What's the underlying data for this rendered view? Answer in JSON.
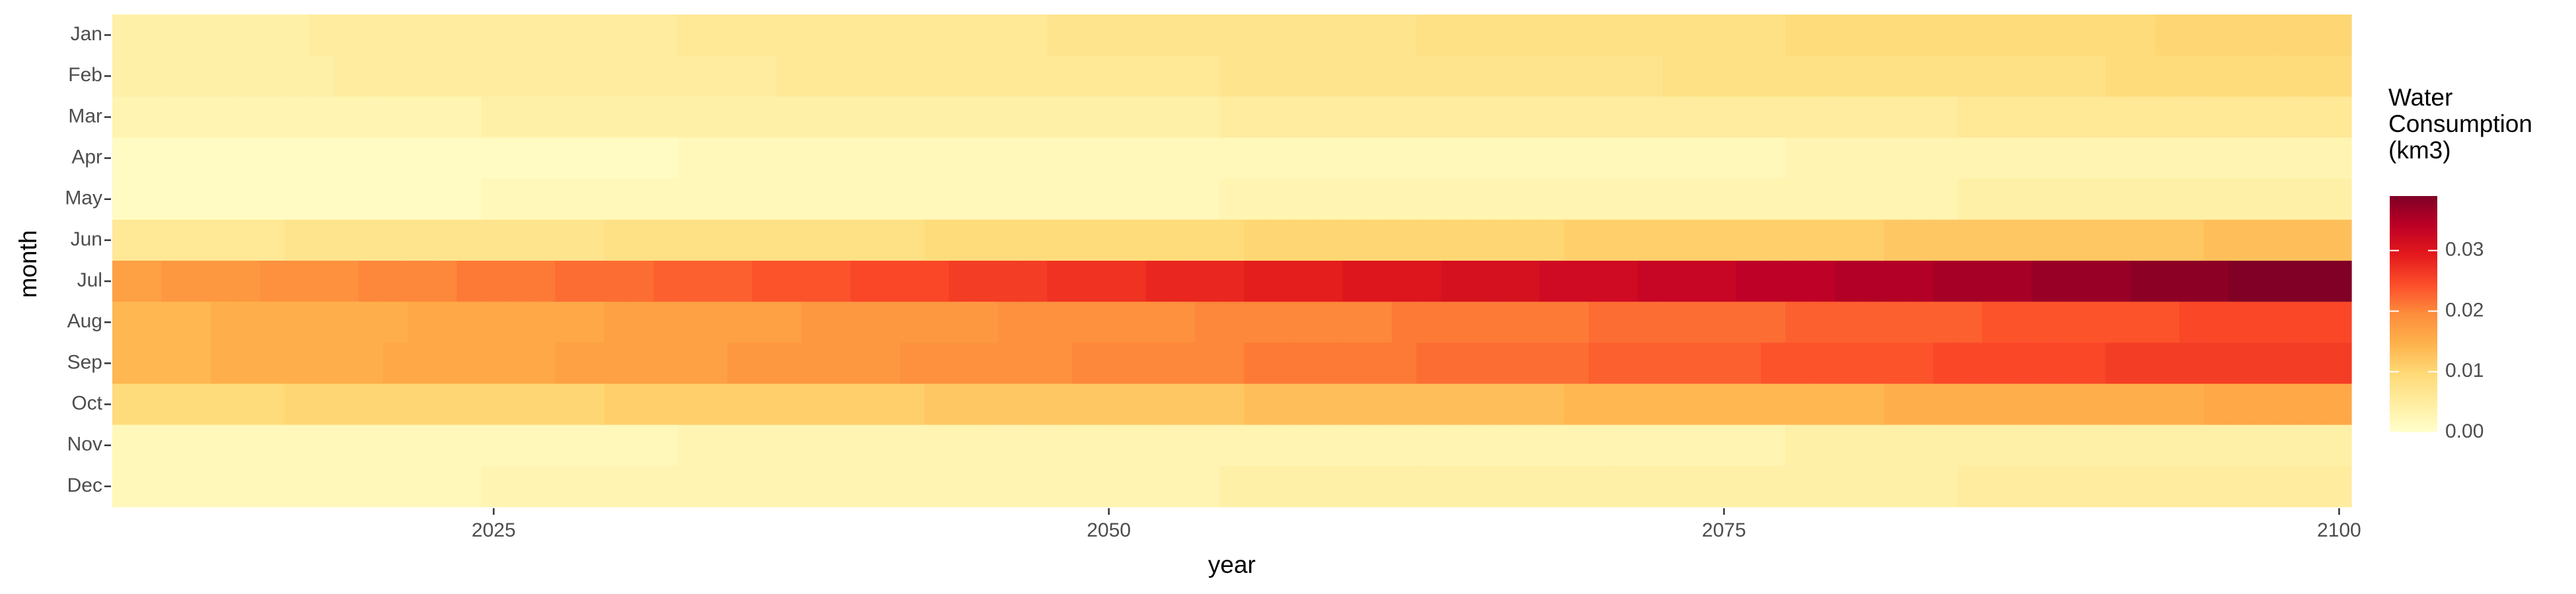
{
  "chart_data": {
    "type": "heatmap",
    "x_label": "year",
    "y_label": "month",
    "legend_title": "Water Consumption (km3)",
    "categories": [
      "Jan",
      "Feb",
      "Mar",
      "Apr",
      "May",
      "Jun",
      "Jul",
      "Aug",
      "Sep",
      "Oct",
      "Nov",
      "Dec"
    ],
    "x": [
      2010,
      2011,
      2012,
      2013,
      2014,
      2015,
      2016,
      2017,
      2018,
      2019,
      2020,
      2021,
      2022,
      2023,
      2024,
      2025,
      2026,
      2027,
      2028,
      2029,
      2030,
      2031,
      2032,
      2033,
      2034,
      2035,
      2036,
      2037,
      2038,
      2039,
      2040,
      2041,
      2042,
      2043,
      2044,
      2045,
      2046,
      2047,
      2048,
      2049,
      2050,
      2051,
      2052,
      2053,
      2054,
      2055,
      2056,
      2057,
      2058,
      2059,
      2060,
      2061,
      2062,
      2063,
      2064,
      2065,
      2066,
      2067,
      2068,
      2069,
      2070,
      2071,
      2072,
      2073,
      2074,
      2075,
      2076,
      2077,
      2078,
      2079,
      2080,
      2081,
      2082,
      2083,
      2084,
      2085,
      2086,
      2087,
      2088,
      2089,
      2090,
      2091,
      2092,
      2093,
      2094,
      2095,
      2096,
      2097,
      2098,
      2099,
      2100
    ],
    "xlim": [
      2009.5,
      2100.5
    ],
    "xticks": [
      2025,
      2050,
      2075,
      2100
    ],
    "clim": [
      0,
      0.039
    ],
    "cticks": [
      {
        "value": 0,
        "label": "0.00"
      },
      {
        "value": 0.01,
        "label": "0.01"
      },
      {
        "value": 0.02,
        "label": "0.02"
      },
      {
        "value": 0.03,
        "label": "0.03"
      }
    ],
    "colors": [
      "#ffffcc",
      "#ffeda0",
      "#fed976",
      "#feb24c",
      "#fd8d3c",
      "#fc4e2a",
      "#e31a1c",
      "#bd0026",
      "#800026"
    ],
    "values": [
      [
        0.004,
        0.004,
        0.004,
        0.004,
        0.004,
        0.004,
        0.004,
        0.004,
        0.005,
        0.005,
        0.005,
        0.005,
        0.005,
        0.005,
        0.005,
        0.005,
        0.005,
        0.005,
        0.005,
        0.005,
        0.005,
        0.005,
        0.005,
        0.006,
        0.006,
        0.006,
        0.006,
        0.006,
        0.006,
        0.006,
        0.006,
        0.006,
        0.006,
        0.006,
        0.006,
        0.006,
        0.006,
        0.006,
        0.007,
        0.007,
        0.007,
        0.007,
        0.007,
        0.007,
        0.007,
        0.007,
        0.007,
        0.007,
        0.007,
        0.007,
        0.007,
        0.007,
        0.007,
        0.008,
        0.008,
        0.008,
        0.008,
        0.008,
        0.008,
        0.008,
        0.008,
        0.008,
        0.008,
        0.008,
        0.008,
        0.008,
        0.008,
        0.008,
        0.009,
        0.009,
        0.009,
        0.009,
        0.009,
        0.009,
        0.009,
        0.009,
        0.009,
        0.009,
        0.009,
        0.009,
        0.009,
        0.009,
        0.009,
        0.01,
        0.01,
        0.01,
        0.01,
        0.01,
        0.01,
        0.01,
        0.01
      ],
      [
        0.004,
        0.004,
        0.004,
        0.004,
        0.004,
        0.004,
        0.004,
        0.004,
        0.004,
        0.005,
        0.005,
        0.005,
        0.005,
        0.005,
        0.005,
        0.005,
        0.005,
        0.005,
        0.005,
        0.005,
        0.005,
        0.005,
        0.005,
        0.005,
        0.005,
        0.005,
        0.005,
        0.006,
        0.006,
        0.006,
        0.006,
        0.006,
        0.006,
        0.006,
        0.006,
        0.006,
        0.006,
        0.006,
        0.006,
        0.006,
        0.006,
        0.006,
        0.006,
        0.006,
        0.006,
        0.007,
        0.007,
        0.007,
        0.007,
        0.007,
        0.007,
        0.007,
        0.007,
        0.007,
        0.007,
        0.007,
        0.007,
        0.007,
        0.007,
        0.007,
        0.007,
        0.007,
        0.007,
        0.008,
        0.008,
        0.008,
        0.008,
        0.008,
        0.008,
        0.008,
        0.008,
        0.008,
        0.008,
        0.008,
        0.008,
        0.008,
        0.008,
        0.008,
        0.008,
        0.008,
        0.008,
        0.009,
        0.009,
        0.009,
        0.009,
        0.009,
        0.009,
        0.009,
        0.009,
        0.009,
        0.009
      ],
      [
        0.003,
        0.003,
        0.003,
        0.003,
        0.003,
        0.003,
        0.003,
        0.003,
        0.003,
        0.003,
        0.003,
        0.003,
        0.003,
        0.003,
        0.003,
        0.004,
        0.004,
        0.004,
        0.004,
        0.004,
        0.004,
        0.004,
        0.004,
        0.004,
        0.004,
        0.004,
        0.004,
        0.004,
        0.004,
        0.004,
        0.004,
        0.004,
        0.004,
        0.004,
        0.004,
        0.004,
        0.004,
        0.004,
        0.004,
        0.004,
        0.004,
        0.004,
        0.004,
        0.004,
        0.004,
        0.005,
        0.005,
        0.005,
        0.005,
        0.005,
        0.005,
        0.005,
        0.005,
        0.005,
        0.005,
        0.005,
        0.005,
        0.005,
        0.005,
        0.005,
        0.005,
        0.005,
        0.005,
        0.005,
        0.005,
        0.005,
        0.005,
        0.005,
        0.005,
        0.005,
        0.005,
        0.005,
        0.005,
        0.005,
        0.005,
        0.006,
        0.006,
        0.006,
        0.006,
        0.006,
        0.006,
        0.006,
        0.006,
        0.006,
        0.006,
        0.006,
        0.006,
        0.006,
        0.006,
        0.006,
        0.006
      ],
      [
        0.001,
        0.001,
        0.001,
        0.001,
        0.001,
        0.001,
        0.001,
        0.001,
        0.001,
        0.001,
        0.001,
        0.001,
        0.001,
        0.001,
        0.001,
        0.001,
        0.001,
        0.001,
        0.001,
        0.001,
        0.001,
        0.001,
        0.001,
        0.002,
        0.002,
        0.002,
        0.002,
        0.002,
        0.002,
        0.002,
        0.002,
        0.002,
        0.002,
        0.002,
        0.002,
        0.002,
        0.002,
        0.002,
        0.002,
        0.002,
        0.002,
        0.002,
        0.002,
        0.002,
        0.002,
        0.002,
        0.002,
        0.002,
        0.002,
        0.002,
        0.002,
        0.002,
        0.002,
        0.002,
        0.002,
        0.002,
        0.002,
        0.002,
        0.002,
        0.002,
        0.002,
        0.002,
        0.002,
        0.002,
        0.002,
        0.002,
        0.002,
        0.002,
        0.003,
        0.003,
        0.003,
        0.003,
        0.003,
        0.003,
        0.003,
        0.003,
        0.003,
        0.003,
        0.003,
        0.003,
        0.003,
        0.003,
        0.003,
        0.003,
        0.003,
        0.003,
        0.003,
        0.003,
        0.003,
        0.003,
        0.003
      ],
      [
        0.001,
        0.001,
        0.001,
        0.001,
        0.001,
        0.001,
        0.001,
        0.001,
        0.001,
        0.001,
        0.001,
        0.001,
        0.001,
        0.001,
        0.001,
        0.002,
        0.002,
        0.002,
        0.002,
        0.002,
        0.002,
        0.002,
        0.002,
        0.002,
        0.002,
        0.002,
        0.002,
        0.002,
        0.002,
        0.002,
        0.002,
        0.002,
        0.002,
        0.002,
        0.002,
        0.002,
        0.002,
        0.002,
        0.002,
        0.002,
        0.002,
        0.002,
        0.002,
        0.002,
        0.002,
        0.003,
        0.003,
        0.003,
        0.003,
        0.003,
        0.003,
        0.003,
        0.003,
        0.003,
        0.003,
        0.003,
        0.003,
        0.003,
        0.003,
        0.003,
        0.003,
        0.003,
        0.003,
        0.003,
        0.003,
        0.003,
        0.003,
        0.003,
        0.003,
        0.003,
        0.003,
        0.003,
        0.003,
        0.003,
        0.003,
        0.004,
        0.004,
        0.004,
        0.004,
        0.004,
        0.004,
        0.004,
        0.004,
        0.004,
        0.004,
        0.004,
        0.004,
        0.004,
        0.004,
        0.004,
        0.004
      ],
      [
        0.006,
        0.006,
        0.006,
        0.006,
        0.006,
        0.006,
        0.006,
        0.007,
        0.007,
        0.007,
        0.007,
        0.007,
        0.007,
        0.007,
        0.007,
        0.007,
        0.007,
        0.007,
        0.007,
        0.007,
        0.008,
        0.008,
        0.008,
        0.008,
        0.008,
        0.008,
        0.008,
        0.008,
        0.008,
        0.008,
        0.008,
        0.008,
        0.008,
        0.009,
        0.009,
        0.009,
        0.009,
        0.009,
        0.009,
        0.009,
        0.009,
        0.009,
        0.009,
        0.009,
        0.009,
        0.009,
        0.01,
        0.01,
        0.01,
        0.01,
        0.01,
        0.01,
        0.01,
        0.01,
        0.01,
        0.01,
        0.01,
        0.01,
        0.01,
        0.011,
        0.011,
        0.011,
        0.011,
        0.011,
        0.011,
        0.011,
        0.011,
        0.011,
        0.011,
        0.011,
        0.011,
        0.011,
        0.012,
        0.012,
        0.012,
        0.012,
        0.012,
        0.012,
        0.012,
        0.012,
        0.012,
        0.012,
        0.012,
        0.012,
        0.012,
        0.013,
        0.013,
        0.013,
        0.013,
        0.013,
        0.013
      ],
      [
        0.017,
        0.017,
        0.018,
        0.018,
        0.018,
        0.018,
        0.019,
        0.019,
        0.019,
        0.019,
        0.02,
        0.02,
        0.02,
        0.02,
        0.021,
        0.021,
        0.021,
        0.021,
        0.022,
        0.022,
        0.022,
        0.022,
        0.023,
        0.023,
        0.023,
        0.023,
        0.024,
        0.024,
        0.024,
        0.024,
        0.025,
        0.025,
        0.025,
        0.025,
        0.026,
        0.026,
        0.026,
        0.026,
        0.027,
        0.027,
        0.027,
        0.027,
        0.028,
        0.028,
        0.028,
        0.028,
        0.029,
        0.029,
        0.029,
        0.029,
        0.03,
        0.03,
        0.03,
        0.03,
        0.031,
        0.031,
        0.031,
        0.031,
        0.032,
        0.032,
        0.032,
        0.032,
        0.033,
        0.033,
        0.033,
        0.033,
        0.034,
        0.034,
        0.034,
        0.034,
        0.035,
        0.035,
        0.035,
        0.035,
        0.036,
        0.036,
        0.036,
        0.036,
        0.037,
        0.037,
        0.037,
        0.037,
        0.038,
        0.038,
        0.038,
        0.038,
        0.039,
        0.039,
        0.039,
        0.039,
        0.039
      ],
      [
        0.014,
        0.014,
        0.014,
        0.014,
        0.015,
        0.015,
        0.015,
        0.015,
        0.015,
        0.015,
        0.015,
        0.015,
        0.016,
        0.016,
        0.016,
        0.016,
        0.016,
        0.016,
        0.016,
        0.016,
        0.017,
        0.017,
        0.017,
        0.017,
        0.017,
        0.017,
        0.017,
        0.017,
        0.018,
        0.018,
        0.018,
        0.018,
        0.018,
        0.018,
        0.018,
        0.018,
        0.019,
        0.019,
        0.019,
        0.019,
        0.019,
        0.019,
        0.019,
        0.019,
        0.02,
        0.02,
        0.02,
        0.02,
        0.02,
        0.02,
        0.02,
        0.02,
        0.021,
        0.021,
        0.021,
        0.021,
        0.021,
        0.021,
        0.021,
        0.021,
        0.022,
        0.022,
        0.022,
        0.022,
        0.022,
        0.022,
        0.022,
        0.022,
        0.023,
        0.023,
        0.023,
        0.023,
        0.023,
        0.023,
        0.023,
        0.023,
        0.024,
        0.024,
        0.024,
        0.024,
        0.024,
        0.024,
        0.024,
        0.024,
        0.025,
        0.025,
        0.025,
        0.025,
        0.025,
        0.025,
        0.025
      ],
      [
        0.014,
        0.014,
        0.014,
        0.014,
        0.015,
        0.015,
        0.015,
        0.015,
        0.015,
        0.015,
        0.015,
        0.016,
        0.016,
        0.016,
        0.016,
        0.016,
        0.016,
        0.016,
        0.017,
        0.017,
        0.017,
        0.017,
        0.017,
        0.017,
        0.017,
        0.018,
        0.018,
        0.018,
        0.018,
        0.018,
        0.018,
        0.018,
        0.019,
        0.019,
        0.019,
        0.019,
        0.019,
        0.019,
        0.019,
        0.02,
        0.02,
        0.02,
        0.02,
        0.02,
        0.02,
        0.02,
        0.021,
        0.021,
        0.021,
        0.021,
        0.021,
        0.021,
        0.021,
        0.022,
        0.022,
        0.022,
        0.022,
        0.022,
        0.022,
        0.022,
        0.023,
        0.023,
        0.023,
        0.023,
        0.023,
        0.023,
        0.023,
        0.024,
        0.024,
        0.024,
        0.024,
        0.024,
        0.024,
        0.024,
        0.025,
        0.025,
        0.025,
        0.025,
        0.025,
        0.025,
        0.025,
        0.026,
        0.026,
        0.026,
        0.026,
        0.026,
        0.026,
        0.026,
        0.026,
        0.026,
        0.026
      ],
      [
        0.009,
        0.009,
        0.009,
        0.009,
        0.009,
        0.009,
        0.009,
        0.01,
        0.01,
        0.01,
        0.01,
        0.01,
        0.01,
        0.01,
        0.01,
        0.01,
        0.01,
        0.01,
        0.01,
        0.01,
        0.011,
        0.011,
        0.011,
        0.011,
        0.011,
        0.011,
        0.011,
        0.011,
        0.011,
        0.011,
        0.011,
        0.011,
        0.011,
        0.012,
        0.012,
        0.012,
        0.012,
        0.012,
        0.012,
        0.012,
        0.012,
        0.012,
        0.012,
        0.012,
        0.012,
        0.012,
        0.013,
        0.013,
        0.013,
        0.013,
        0.013,
        0.013,
        0.013,
        0.013,
        0.013,
        0.013,
        0.013,
        0.013,
        0.013,
        0.014,
        0.014,
        0.014,
        0.014,
        0.014,
        0.014,
        0.014,
        0.014,
        0.014,
        0.014,
        0.014,
        0.014,
        0.014,
        0.015,
        0.015,
        0.015,
        0.015,
        0.015,
        0.015,
        0.015,
        0.015,
        0.015,
        0.015,
        0.015,
        0.015,
        0.015,
        0.016,
        0.016,
        0.016,
        0.016,
        0.016,
        0.016
      ],
      [
        0.002,
        0.002,
        0.002,
        0.002,
        0.002,
        0.002,
        0.002,
        0.002,
        0.002,
        0.002,
        0.002,
        0.002,
        0.002,
        0.002,
        0.002,
        0.002,
        0.002,
        0.002,
        0.002,
        0.002,
        0.002,
        0.002,
        0.002,
        0.003,
        0.003,
        0.003,
        0.003,
        0.003,
        0.003,
        0.003,
        0.003,
        0.003,
        0.003,
        0.003,
        0.003,
        0.003,
        0.003,
        0.003,
        0.003,
        0.003,
        0.003,
        0.003,
        0.003,
        0.003,
        0.003,
        0.003,
        0.003,
        0.003,
        0.003,
        0.003,
        0.003,
        0.003,
        0.003,
        0.003,
        0.003,
        0.003,
        0.003,
        0.003,
        0.003,
        0.003,
        0.003,
        0.003,
        0.003,
        0.003,
        0.003,
        0.003,
        0.003,
        0.003,
        0.004,
        0.004,
        0.004,
        0.004,
        0.004,
        0.004,
        0.004,
        0.004,
        0.004,
        0.004,
        0.004,
        0.004,
        0.004,
        0.004,
        0.004,
        0.004,
        0.004,
        0.004,
        0.004,
        0.004,
        0.004,
        0.004,
        0.004
      ],
      [
        0.002,
        0.002,
        0.002,
        0.002,
        0.002,
        0.002,
        0.002,
        0.002,
        0.002,
        0.002,
        0.002,
        0.002,
        0.002,
        0.002,
        0.002,
        0.003,
        0.003,
        0.003,
        0.003,
        0.003,
        0.003,
        0.003,
        0.003,
        0.003,
        0.003,
        0.003,
        0.003,
        0.003,
        0.003,
        0.003,
        0.003,
        0.003,
        0.003,
        0.003,
        0.003,
        0.003,
        0.003,
        0.003,
        0.003,
        0.003,
        0.003,
        0.003,
        0.003,
        0.003,
        0.003,
        0.004,
        0.004,
        0.004,
        0.004,
        0.004,
        0.004,
        0.004,
        0.004,
        0.004,
        0.004,
        0.004,
        0.004,
        0.004,
        0.004,
        0.004,
        0.004,
        0.004,
        0.004,
        0.004,
        0.004,
        0.004,
        0.004,
        0.004,
        0.004,
        0.004,
        0.004,
        0.004,
        0.004,
        0.004,
        0.004,
        0.005,
        0.005,
        0.005,
        0.005,
        0.005,
        0.005,
        0.005,
        0.005,
        0.005,
        0.005,
        0.005,
        0.005,
        0.005,
        0.005,
        0.005,
        0.005
      ]
    ]
  }
}
